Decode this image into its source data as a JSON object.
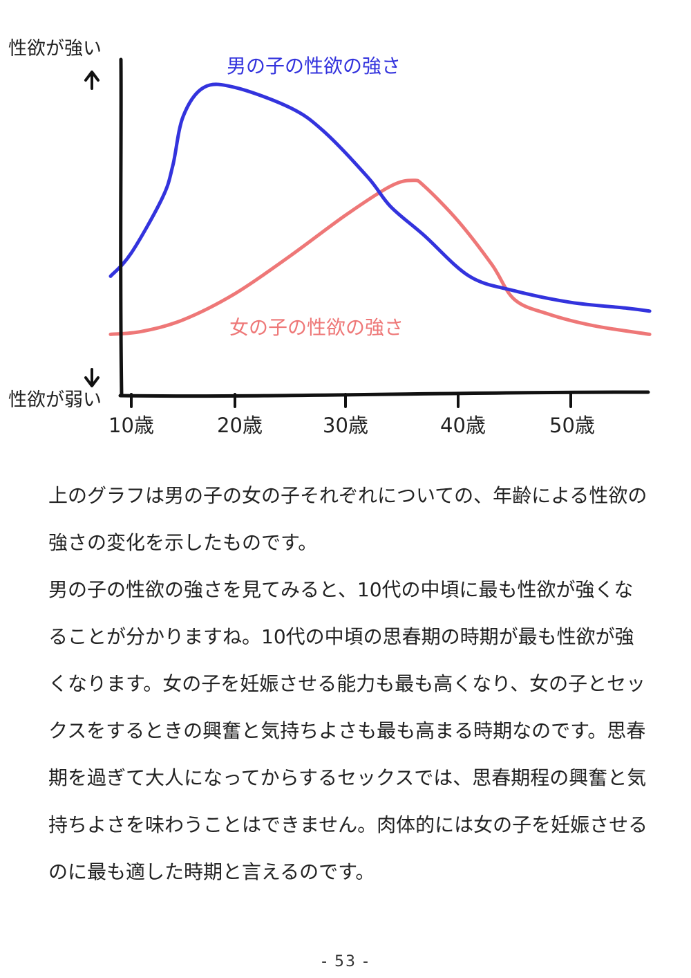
{
  "chart_data": {
    "type": "line",
    "ylabel_top": "性欲が強い",
    "ylabel_bottom": "性欲が弱い",
    "x_ticks": [
      "10歳",
      "20歳",
      "30歳",
      "40歳",
      "50歳"
    ],
    "xlim": [
      9,
      57
    ],
    "ylim": [
      0,
      100
    ],
    "grid": false,
    "series": [
      {
        "name": "男の子の性欲の強さ",
        "color": "#3333dd",
        "x": [
          8,
          10,
          13,
          14,
          15,
          17,
          20,
          25,
          28,
          32,
          34,
          37,
          41,
          45,
          50,
          55,
          57
        ],
        "y": [
          33,
          41,
          60,
          71,
          88,
          98,
          98,
          91,
          83,
          67,
          57,
          47,
          33,
          28,
          24,
          22,
          21
        ]
      },
      {
        "name": "女の子の性欲の強さ",
        "color": "#ee7777",
        "x": [
          8,
          11,
          15,
          20,
          25,
          30,
          34,
          36,
          37,
          40,
          43,
          45,
          48,
          52,
          57
        ],
        "y": [
          13,
          14,
          18,
          27,
          40,
          54,
          64,
          66,
          64,
          52,
          37,
          25,
          20,
          16,
          13
        ]
      }
    ]
  },
  "body": {
    "paragraphs": [
      "上のグラフは男の子の女の子それぞれについての、年齢による性欲の強さの変化を示したものです。",
      "男の子の性欲の強さを見てみると、10代の中頃に最も性欲が強くなることが分かりますね。10代の中頃の思春期の時期が最も性欲が強くなります。女の子を妊娠させる能力も最も高くなり、女の子とセックスをするときの興奮と気持ちよさも最も高まる時期なのです。思春期を過ぎて大人になってからするセックスでは、思春期程の興奮と気持ちよさを味わうことはできません。肉体的には女の子を妊娠させるのに最も適した時期と言えるのです。"
    ]
  },
  "page_number": "- 53 -"
}
